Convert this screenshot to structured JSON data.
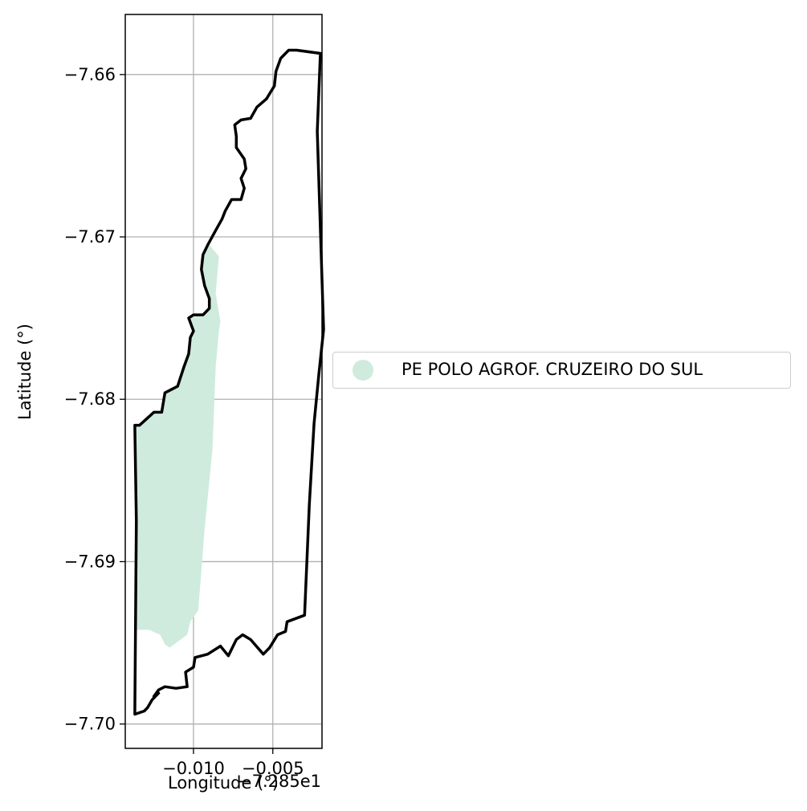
{
  "chart_data": {
    "type": "map",
    "xlabel": "Longitude (°)",
    "ylabel": "Latitude (°)",
    "x_offset_label": "−7.285e1",
    "x_offset": -72.85,
    "xlim": [
      -0.0143,
      -0.0019
    ],
    "ylim": [
      -7.7015,
      -7.6563
    ],
    "x_ticks": [
      {
        "value": -0.01,
        "label": "−0.010"
      },
      {
        "value": -0.005,
        "label": "−0.005"
      }
    ],
    "y_ticks": [
      {
        "value": -7.66,
        "label": "−7.66"
      },
      {
        "value": -7.67,
        "label": "−7.67"
      },
      {
        "value": -7.68,
        "label": "−7.68"
      },
      {
        "value": -7.69,
        "label": "−7.69"
      },
      {
        "value": -7.7,
        "label": "−7.70"
      }
    ],
    "grid": true,
    "legend": {
      "placement": "right-center",
      "entries": [
        {
          "label": "PE POLO AGROF. CRUZEIRO DO SUL",
          "color": "#cfebdd"
        }
      ]
    },
    "fill_color": "#cfebdd",
    "outline_color": "#000000",
    "outline": [
      [
        -0.0035,
        -7.6585
      ],
      [
        -0.002,
        -7.6587
      ],
      [
        -0.0022,
        -7.6635
      ],
      [
        -0.0018,
        -7.6757
      ],
      [
        -0.0021,
        -7.6785
      ],
      [
        -0.0024,
        -7.6815
      ],
      [
        -0.0027,
        -7.6865
      ],
      [
        -0.003,
        -7.6933
      ],
      [
        -0.0041,
        -7.6937
      ],
      [
        -0.0042,
        -7.6943
      ],
      [
        -0.0047,
        -7.6945
      ],
      [
        -0.0052,
        -7.6953
      ],
      [
        -0.0056,
        -7.6957
      ],
      [
        -0.0064,
        -7.6948
      ],
      [
        -0.0069,
        -7.6945
      ],
      [
        -0.0073,
        -7.6948
      ],
      [
        -0.0078,
        -7.6958
      ],
      [
        -0.0083,
        -7.6952
      ],
      [
        -0.0091,
        -7.6957
      ],
      [
        -0.0099,
        -7.6959
      ],
      [
        -0.01,
        -7.6965
      ],
      [
        -0.0105,
        -7.6968
      ],
      [
        -0.0104,
        -7.6977
      ],
      [
        -0.0111,
        -7.6978
      ],
      [
        -0.0118,
        -7.6977
      ],
      [
        -0.0122,
        -7.6979
      ],
      [
        -0.0125,
        -7.6983
      ],
      [
        -0.0122,
        -7.6981
      ],
      [
        -0.0126,
        -7.6985
      ],
      [
        -0.0129,
        -7.699
      ],
      [
        -0.0131,
        -7.6992
      ],
      [
        -0.0137,
        -7.6994
      ],
      [
        -0.0136,
        -7.6875
      ],
      [
        -0.0137,
        -7.6816
      ],
      [
        -0.0134,
        -7.6816
      ],
      [
        -0.0125,
        -7.6808
      ],
      [
        -0.012,
        -7.6808
      ],
      [
        -0.0118,
        -7.6796
      ],
      [
        -0.011,
        -7.6792
      ],
      [
        -0.0106,
        -7.678
      ],
      [
        -0.0103,
        -7.6772
      ],
      [
        -0.0102,
        -7.6762
      ],
      [
        -0.01,
        -7.6758
      ],
      [
        -0.0103,
        -7.675
      ],
      [
        -0.01,
        -7.6748
      ],
      [
        -0.0094,
        -7.6748
      ],
      [
        -0.009,
        -7.6744
      ],
      [
        -0.009,
        -7.6738
      ],
      [
        -0.0093,
        -7.673
      ],
      [
        -0.0095,
        -7.672
      ],
      [
        -0.0094,
        -7.6711
      ],
      [
        -0.0091,
        -7.6705
      ],
      [
        -0.0086,
        -7.6696
      ],
      [
        -0.0082,
        -7.6689
      ],
      [
        -0.008,
        -7.6684
      ],
      [
        -0.0076,
        -7.6677
      ],
      [
        -0.007,
        -7.6677
      ],
      [
        -0.0068,
        -7.667
      ],
      [
        -0.007,
        -7.6664
      ],
      [
        -0.0067,
        -7.6658
      ],
      [
        -0.0068,
        -7.6652
      ],
      [
        -0.0073,
        -7.6645
      ],
      [
        -0.0073,
        -7.6638
      ],
      [
        -0.0074,
        -7.6631
      ],
      [
        -0.007,
        -7.6628
      ],
      [
        -0.0064,
        -7.6627
      ],
      [
        -0.006,
        -7.662
      ],
      [
        -0.0054,
        -7.6615
      ],
      [
        -0.0049,
        -7.6607
      ],
      [
        -0.0048,
        -7.6598
      ],
      [
        -0.0045,
        -7.659
      ],
      [
        -0.004,
        -7.6585
      ],
      [
        -0.0035,
        -7.6585
      ]
    ],
    "filled_area": [
      [
        -0.009,
        -7.6705
      ],
      [
        -0.0084,
        -7.6712
      ],
      [
        -0.0086,
        -7.6735
      ],
      [
        -0.0083,
        -7.6752
      ],
      [
        -0.0084,
        -7.6758
      ],
      [
        -0.0086,
        -7.678
      ],
      [
        -0.0088,
        -7.683
      ],
      [
        -0.0093,
        -7.688
      ],
      [
        -0.0097,
        -7.693
      ],
      [
        -0.0102,
        -7.6937
      ],
      [
        -0.0104,
        -7.6945
      ],
      [
        -0.0108,
        -7.6948
      ],
      [
        -0.0111,
        -7.695
      ],
      [
        -0.0115,
        -7.6953
      ],
      [
        -0.0118,
        -7.6951
      ],
      [
        -0.0121,
        -7.6945
      ],
      [
        -0.0128,
        -7.6942
      ],
      [
        -0.0136,
        -7.6942
      ],
      [
        -0.0137,
        -7.6816
      ],
      [
        -0.0134,
        -7.6816
      ],
      [
        -0.0125,
        -7.6808
      ],
      [
        -0.012,
        -7.6808
      ],
      [
        -0.0118,
        -7.6796
      ],
      [
        -0.011,
        -7.6792
      ],
      [
        -0.0106,
        -7.678
      ],
      [
        -0.0103,
        -7.6772
      ],
      [
        -0.0102,
        -7.6762
      ],
      [
        -0.01,
        -7.6758
      ],
      [
        -0.0103,
        -7.675
      ],
      [
        -0.01,
        -7.6748
      ],
      [
        -0.0094,
        -7.6748
      ],
      [
        -0.009,
        -7.6744
      ],
      [
        -0.009,
        -7.6738
      ],
      [
        -0.0093,
        -7.673
      ],
      [
        -0.0095,
        -7.672
      ],
      [
        -0.0094,
        -7.6711
      ],
      [
        -0.009,
        -7.6705
      ]
    ]
  }
}
